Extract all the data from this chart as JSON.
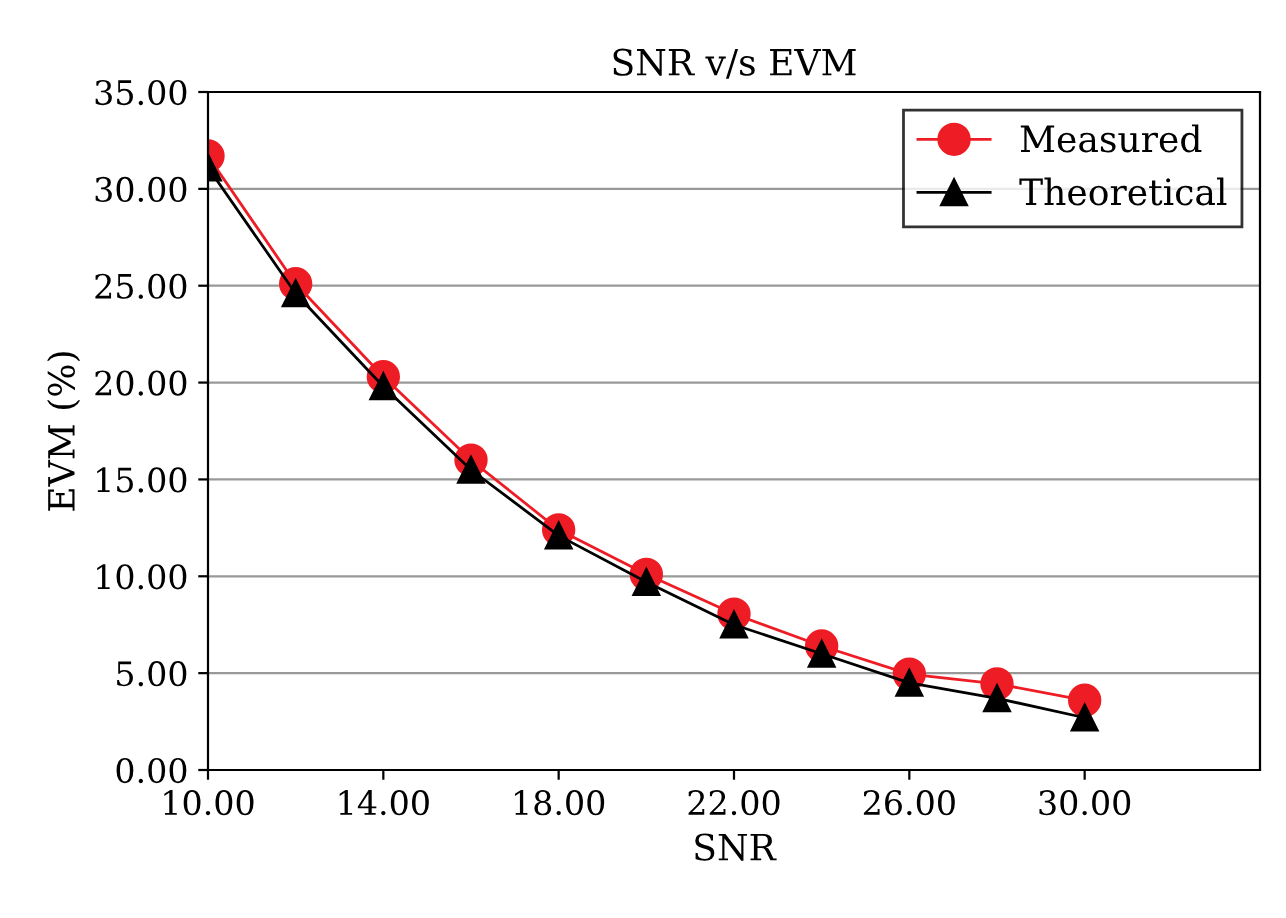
{
  "chart_data": {
    "type": "line",
    "title": "SNR v/s EVM",
    "xlabel": "SNR",
    "ylabel": "EVM (%)",
    "x": [
      10,
      12,
      14,
      16,
      18,
      20,
      22,
      24,
      26,
      28,
      30
    ],
    "series": [
      {
        "name": "Measured",
        "color": "#ee1c24",
        "marker": "circle",
        "values": [
          31.7,
          25.1,
          20.3,
          16.0,
          12.4,
          10.1,
          8.05,
          6.4,
          4.95,
          4.45,
          3.6
        ]
      },
      {
        "name": "Theoretical",
        "color": "#000000",
        "marker": "triangle",
        "values": [
          31.1,
          24.6,
          19.8,
          15.5,
          12.1,
          9.7,
          7.5,
          6.0,
          4.5,
          3.7,
          2.7
        ]
      }
    ],
    "xlim": [
      10,
      34
    ],
    "xticks": [
      {
        "value": 10,
        "label": "10.00"
      },
      {
        "value": 14,
        "label": "14.00"
      },
      {
        "value": 18,
        "label": "18.00"
      },
      {
        "value": 22,
        "label": "22.00"
      },
      {
        "value": 26,
        "label": "26.00"
      },
      {
        "value": 30,
        "label": "30.00"
      }
    ],
    "ylim": [
      0,
      35
    ],
    "yticks": [
      {
        "value": 0,
        "label": "0.00"
      },
      {
        "value": 5,
        "label": "5.00"
      },
      {
        "value": 10,
        "label": "10.00"
      },
      {
        "value": 15,
        "label": "15.00"
      },
      {
        "value": 20,
        "label": "20.00"
      },
      {
        "value": 25,
        "label": "25.00"
      },
      {
        "value": 30,
        "label": "30.00"
      },
      {
        "value": 35,
        "label": "35.00"
      }
    ],
    "grid": "y",
    "legend": "top right",
    "line_style": "solid"
  }
}
